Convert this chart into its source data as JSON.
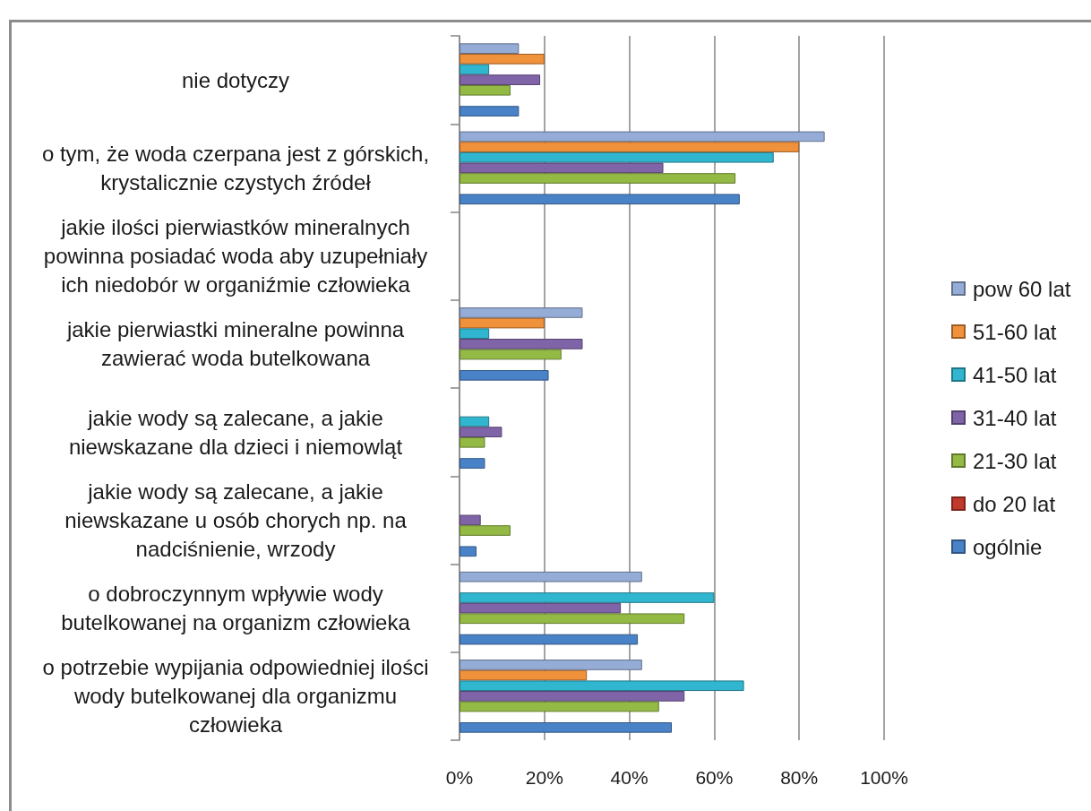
{
  "chart_data": {
    "type": "bar",
    "orientation": "horizontal",
    "categories": [
      "nie dotyczy",
      "o tym, że woda czerpana jest z górskich, krystalicznie czystych źródeł",
      "jakie ilości pierwiastków mineralnych powinna posiadać woda aby uzupełniały ich niedobór w organiźmie człowieka",
      "jakie pierwiastki mineralne powinna zawierać woda butelkowana",
      "jakie wody są zalecane, a jakie niewskazane dla dzieci i niemowląt",
      "jakie wody są zalecane, a jakie niewskazane u osób chorych np. na nadciśnienie, wrzody",
      "o dobroczynnym wpływie wody butelkowanej na organizm człowieka",
      "o potrzebie wypijania odpowiedniej ilości wody butelkowanej dla organizmu człowieka"
    ],
    "series": [
      {
        "name": "pow 60 lat",
        "color": "#95acd6",
        "values": [
          14,
          86,
          null,
          29,
          null,
          null,
          43,
          43
        ]
      },
      {
        "name": "51-60 lat",
        "color": "#f0913c",
        "values": [
          20,
          80,
          null,
          20,
          null,
          null,
          null,
          30
        ]
      },
      {
        "name": "41-50 lat",
        "color": "#31b6d0",
        "values": [
          7,
          74,
          null,
          7,
          7,
          null,
          60,
          67
        ]
      },
      {
        "name": "31-40 lat",
        "color": "#8064a8",
        "values": [
          19,
          48,
          null,
          29,
          10,
          5,
          38,
          53
        ]
      },
      {
        "name": "21-30 lat",
        "color": "#93ba44",
        "values": [
          12,
          65,
          null,
          24,
          6,
          12,
          53,
          47
        ]
      },
      {
        "name": "do 20 lat",
        "color": "#c0392b",
        "values": [
          null,
          null,
          null,
          null,
          null,
          null,
          null,
          null
        ]
      },
      {
        "name": "ogólnie",
        "color": "#4a82c8",
        "values": [
          14,
          66,
          null,
          21,
          6,
          4,
          42,
          50
        ]
      }
    ],
    "xlim": [
      0,
      100
    ],
    "xticks": [
      {
        "value": 0,
        "label": "0%"
      },
      {
        "value": 20,
        "label": "20%"
      },
      {
        "value": 40,
        "label": "40%"
      },
      {
        "value": 60,
        "label": "60%"
      },
      {
        "value": 80,
        "label": "80%"
      },
      {
        "value": 100,
        "label": "100%"
      }
    ],
    "grid": "x",
    "legend": "right"
  }
}
